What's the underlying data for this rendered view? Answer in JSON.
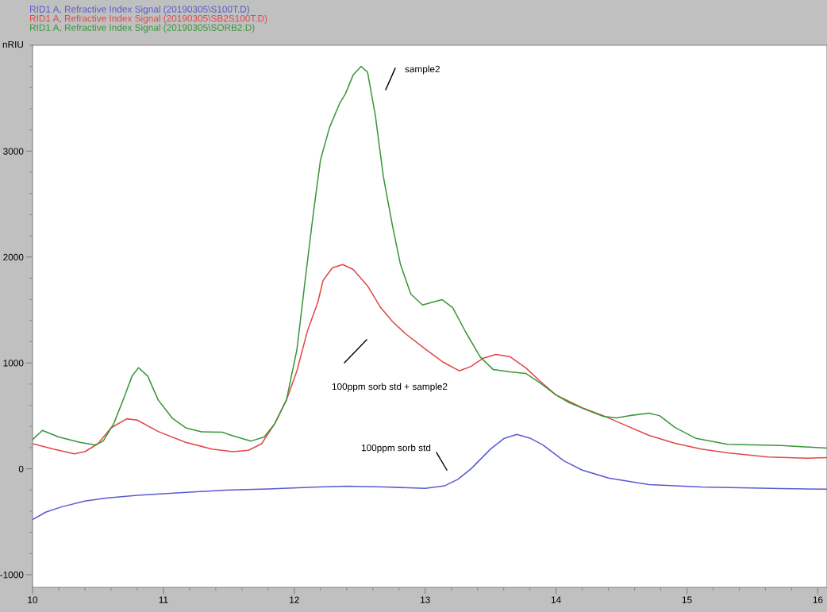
{
  "chart_data": {
    "type": "line",
    "ylabel": "nRIU",
    "xlim": [
      10,
      16.07
    ],
    "ylim": [
      -1120,
      4000
    ],
    "xticks": [
      10,
      {
        "value": 10.2,
        "label": null
      },
      {
        "value": 10.4,
        "label": null
      },
      {
        "value": 10.6,
        "label": null
      },
      {
        "value": 10.8,
        "label": null
      },
      11,
      {
        "value": 11.2,
        "label": null
      },
      {
        "value": 11.4,
        "label": null
      },
      {
        "value": 11.6,
        "label": null
      },
      {
        "value": 11.8,
        "label": null
      },
      12,
      {
        "value": 12.2,
        "label": null
      },
      {
        "value": 12.4,
        "label": null
      },
      {
        "value": 12.6,
        "label": null
      },
      {
        "value": 12.8,
        "label": null
      },
      13,
      {
        "value": 13.2,
        "label": null
      },
      {
        "value": 13.4,
        "label": null
      },
      {
        "value": 13.6,
        "label": null
      },
      {
        "value": 13.8,
        "label": null
      },
      14,
      {
        "value": 14.2,
        "label": null
      },
      {
        "value": 14.4,
        "label": null
      },
      {
        "value": 14.6,
        "label": null
      },
      {
        "value": 14.8,
        "label": null
      },
      15,
      {
        "value": 15.2,
        "label": null
      },
      {
        "value": 15.4,
        "label": null
      },
      {
        "value": 15.6,
        "label": null
      },
      {
        "value": 15.8,
        "label": null
      },
      16
    ],
    "yticks": [
      -1000,
      {
        "value": -800,
        "label": null
      },
      {
        "value": -600,
        "label": null
      },
      {
        "value": -400,
        "label": null
      },
      {
        "value": -200,
        "label": null
      },
      0,
      {
        "value": 200,
        "label": null
      },
      {
        "value": 400,
        "label": null
      },
      {
        "value": 600,
        "label": null
      },
      {
        "value": 800,
        "label": null
      },
      1000,
      {
        "value": 1200,
        "label": null
      },
      {
        "value": 1400,
        "label": null
      },
      {
        "value": 1600,
        "label": null
      },
      {
        "value": 1800,
        "label": null
      },
      2000,
      {
        "value": 2200,
        "label": null
      },
      {
        "value": 2400,
        "label": null
      },
      {
        "value": 2600,
        "label": null
      },
      {
        "value": 2800,
        "label": null
      },
      3000,
      {
        "value": 3200,
        "label": null
      },
      {
        "value": 3400,
        "label": null
      },
      {
        "value": 3600,
        "label": null
      },
      {
        "value": 3800,
        "label": null
      },
      {
        "value": 4000,
        "label": null
      }
    ],
    "grid": false,
    "legend": "top left",
    "marker": "none",
    "line_style": "solid",
    "series": [
      {
        "name": "RID1 A, Refractive Index Signal (20190305\\S100T.D)",
        "color": "#5a5ad2",
        "x": [
          10.0,
          10.1,
          10.22,
          10.4,
          10.56,
          10.8,
          11.0,
          11.47,
          11.8,
          12.18,
          12.4,
          12.7,
          13.0,
          13.15,
          13.25,
          13.35,
          13.5,
          13.6,
          13.7,
          13.8,
          13.9,
          14.06,
          14.2,
          14.4,
          14.71,
          15.11,
          15.72,
          16.07
        ],
        "values": [
          -480,
          -410,
          -360,
          -305,
          -277,
          -250,
          -235,
          -202,
          -190,
          -172,
          -165,
          -172,
          -185,
          -160,
          -100,
          0,
          187,
          285,
          325,
          290,
          225,
          75,
          -12,
          -87,
          -150,
          -172,
          -187,
          -192
        ]
      },
      {
        "name": "RID1 A, Refractive Index Signal (20190305\\SB2S100T.D)",
        "color": "#e04848",
        "x": [
          10.0,
          10.16,
          10.32,
          10.4,
          10.5,
          10.6,
          10.72,
          10.8,
          10.96,
          11.17,
          11.37,
          11.53,
          11.65,
          11.75,
          11.85,
          11.94,
          12.02,
          12.1,
          12.18,
          12.22,
          12.29,
          12.37,
          12.45,
          12.56,
          12.66,
          12.75,
          12.85,
          13.0,
          13.14,
          13.26,
          13.35,
          13.44,
          13.54,
          13.65,
          13.77,
          13.88,
          14.0,
          14.2,
          14.36,
          14.5,
          14.71,
          14.91,
          15.11,
          15.31,
          15.62,
          15.92,
          16.07
        ],
        "values": [
          237,
          187,
          142,
          162,
          237,
          387,
          472,
          460,
          352,
          250,
          187,
          162,
          175,
          237,
          425,
          650,
          925,
          1300,
          1575,
          1779,
          1897,
          1929,
          1882,
          1727,
          1522,
          1391,
          1275,
          1132,
          1005,
          925,
          967,
          1042,
          1080,
          1057,
          952,
          825,
          697,
          577,
          502,
          427,
          315,
          240,
          187,
          150,
          112,
          100,
          105
        ]
      },
      {
        "name": "RID1 A, Refractive Index Signal (20190305\\SORB2.D)",
        "color": "#3a963a",
        "x": [
          10.0,
          10.075,
          10.2,
          10.36,
          10.48,
          10.54,
          10.62,
          10.7,
          10.76,
          10.81,
          10.88,
          10.96,
          11.07,
          11.17,
          11.29,
          11.45,
          11.53,
          11.67,
          11.77,
          11.85,
          11.94,
          12.02,
          12.08,
          12.14,
          12.2,
          12.27,
          12.35,
          12.39,
          12.45,
          12.51,
          12.56,
          12.62,
          12.68,
          12.75,
          12.81,
          12.89,
          12.98,
          13.06,
          13.13,
          13.21,
          13.31,
          13.42,
          13.52,
          13.65,
          13.77,
          13.88,
          14.0,
          14.1,
          14.22,
          14.36,
          14.46,
          14.56,
          14.71,
          14.79,
          14.91,
          15.07,
          15.31,
          15.72,
          16.07
        ],
        "values": [
          275,
          362,
          300,
          250,
          225,
          262,
          425,
          675,
          875,
          955,
          875,
          650,
          475,
          387,
          350,
          345,
          312,
          262,
          300,
          425,
          650,
          1125,
          1750,
          2360,
          2917,
          3227,
          3460,
          3540,
          3720,
          3800,
          3745,
          3330,
          2762,
          2296,
          1935,
          1650,
          1547,
          1575,
          1597,
          1522,
          1290,
          1057,
          937,
          915,
          900,
          810,
          697,
          625,
          562,
          495,
          480,
          502,
          525,
          502,
          390,
          287,
          232,
          220,
          195
        ]
      }
    ],
    "annotations": [
      "sample2",
      "100ppm sorb std + sample2",
      "100ppm sorb std"
    ]
  }
}
